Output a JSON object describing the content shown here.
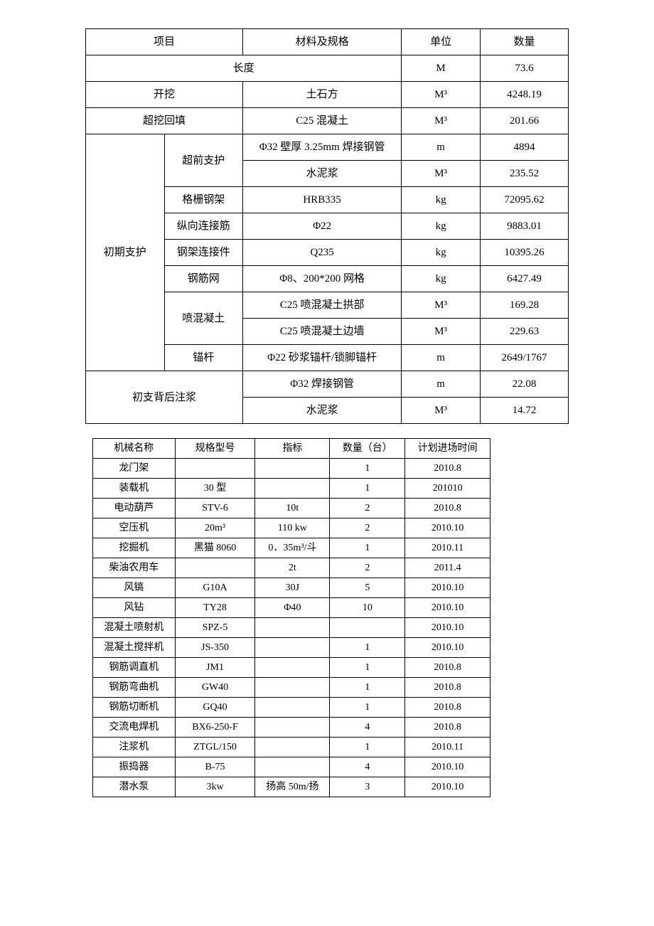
{
  "table1": {
    "header": {
      "col1": "项目",
      "col2": "材料及规格",
      "col3": "单位",
      "col4": "数量"
    },
    "length_row": {
      "label": "长度",
      "unit": "M",
      "qty": "73.6"
    },
    "excavation": {
      "label": "开挖",
      "spec": "土石方",
      "unit": "M³",
      "qty": "4248.19"
    },
    "overbreak": {
      "label": "超挖回填",
      "spec": "C25 混凝土",
      "unit": "M³",
      "qty": "201.66"
    },
    "initial_support": {
      "label": "初期支护",
      "advance": {
        "label": "超前支护",
        "row1": {
          "spec": "Φ32 壁厚 3.25mm 焊接钢管",
          "unit": "m",
          "qty": "4894"
        },
        "row2": {
          "spec": "水泥浆",
          "unit": "M³",
          "qty": "235.52"
        }
      },
      "grid_frame": {
        "label": "格栅钢架",
        "spec": "HRB335",
        "unit": "kg",
        "qty": "72095.62"
      },
      "connect_bar": {
        "label": "纵向连接筋",
        "spec": "Φ22",
        "unit": "kg",
        "qty": "9883.01"
      },
      "frame_conn": {
        "label": "钢架连接件",
        "spec": "Q235",
        "unit": "kg",
        "qty": "10395.26"
      },
      "rebar_net": {
        "label": "钢筋网",
        "spec": "Φ8、200*200 网格",
        "unit": "kg",
        "qty": "6427.49"
      },
      "shotcrete": {
        "label": "喷混凝土",
        "row1": {
          "spec": "C25 喷混凝土拱部",
          "unit": "M³",
          "qty": "169.28"
        },
        "row2": {
          "spec": "C25 喷混凝土边墙",
          "unit": "M³",
          "qty": "229.63"
        }
      },
      "anchor": {
        "label": "锚杆",
        "spec": "Φ22 砂浆锚杆/锁脚锚杆",
        "unit": "m",
        "qty": "2649/1767"
      }
    },
    "back_grouting": {
      "label": "初支背后注浆",
      "row1": {
        "spec": "Φ32 焊接钢管",
        "unit": "m",
        "qty": "22.08"
      },
      "row2": {
        "spec": "水泥浆",
        "unit": "M³",
        "qty": "14.72"
      }
    }
  },
  "table2": {
    "header": {
      "col1": "机械名称",
      "col2": "规格型号",
      "col3": "指标",
      "col4": "数量（台）",
      "col5": "计划进场时间"
    },
    "rows": [
      {
        "name": "龙门架",
        "model": "",
        "spec": "",
        "qty": "1",
        "time": "2010.8"
      },
      {
        "name": "装载机",
        "model": "30 型",
        "spec": "",
        "qty": "1",
        "time": "201010"
      },
      {
        "name": "电动葫芦",
        "model": "STV-6",
        "spec": "10t",
        "qty": "2",
        "time": "2010.8"
      },
      {
        "name": "空压机",
        "model": "20m³",
        "spec": "110 kw",
        "qty": "2",
        "time": "2010.10"
      },
      {
        "name": "挖掘机",
        "model": "黑猫 8060",
        "spec": "0．35m³/斗",
        "qty": "1",
        "time": "2010.11"
      },
      {
        "name": "柴油农用车",
        "model": "",
        "spec": "2t",
        "qty": "2",
        "time": "2011.4"
      },
      {
        "name": "风镐",
        "model": "G10A",
        "spec": "30J",
        "qty": "5",
        "time": "2010.10"
      },
      {
        "name": "风钻",
        "model": "TY28",
        "spec": "Φ40",
        "qty": "10",
        "time": "2010.10"
      },
      {
        "name": "混凝土喷射机",
        "model": "SPZ-5",
        "spec": "",
        "qty": "",
        "time": "2010.10"
      },
      {
        "name": "混凝土搅拌机",
        "model": "JS-350",
        "spec": "",
        "qty": "1",
        "time": "2010.10"
      },
      {
        "name": "钢筋调直机",
        "model": "JM1",
        "spec": "",
        "qty": "1",
        "time": "2010.8"
      },
      {
        "name": "钢筋弯曲机",
        "model": "GW40",
        "spec": "",
        "qty": "1",
        "time": "2010.8"
      },
      {
        "name": "钢筋切断机",
        "model": "GQ40",
        "spec": "",
        "qty": "1",
        "time": "2010.8"
      },
      {
        "name": "交流电焊机",
        "model": "BX6-250-F",
        "spec": "",
        "qty": "4",
        "time": "2010.8"
      },
      {
        "name": "注浆机",
        "model": "ZTGL/150",
        "spec": "",
        "qty": "1",
        "time": "2010.11"
      },
      {
        "name": "振捣器",
        "model": "B-75",
        "spec": "",
        "qty": "4",
        "time": "2010.10"
      },
      {
        "name": "潜水泵",
        "model": "3kw",
        "spec": "扬高 50m/扬",
        "qty": "3",
        "time": "2010.10"
      }
    ]
  }
}
